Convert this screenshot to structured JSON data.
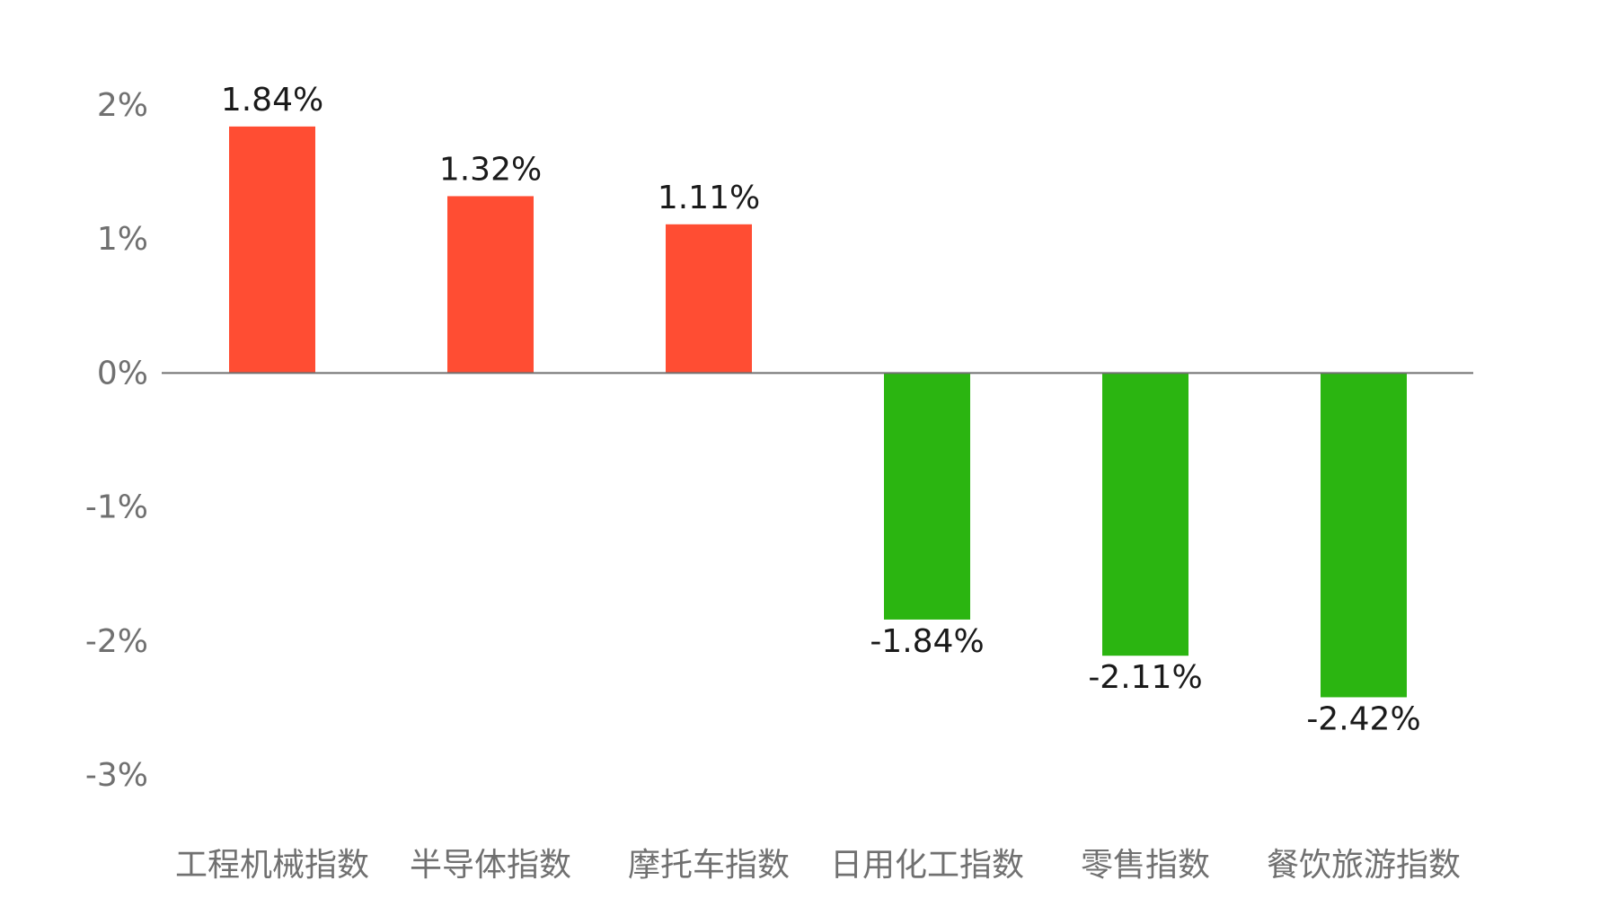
{
  "chart_data": {
    "type": "bar",
    "title": "",
    "xlabel": "",
    "ylabel": "",
    "categories": [
      "工程机械指数",
      "半导体指数",
      "摩托车指数",
      "日用化工指数",
      "零售指数",
      "餐饮旅游指数"
    ],
    "values": [
      1.84,
      1.32,
      1.11,
      -1.84,
      -2.11,
      -2.42
    ],
    "data_labels": [
      "1.84%",
      "1.32%",
      "1.11%",
      "-1.84%",
      "-2.11%",
      "-2.42%"
    ],
    "ylim": [
      -3,
      2
    ],
    "yticks": [
      2,
      1,
      0,
      -1,
      -2,
      -3
    ],
    "ytick_labels": [
      "2%",
      "1%",
      "0%",
      "-1%",
      "-2%",
      "-3%"
    ],
    "grid": false,
    "legend": "none",
    "colors": {
      "positive": "#ff4d33",
      "negative": "#2bb511",
      "zero_line": "#707070",
      "tick_text": "#707070",
      "label_text": "#1a1a1a"
    }
  }
}
